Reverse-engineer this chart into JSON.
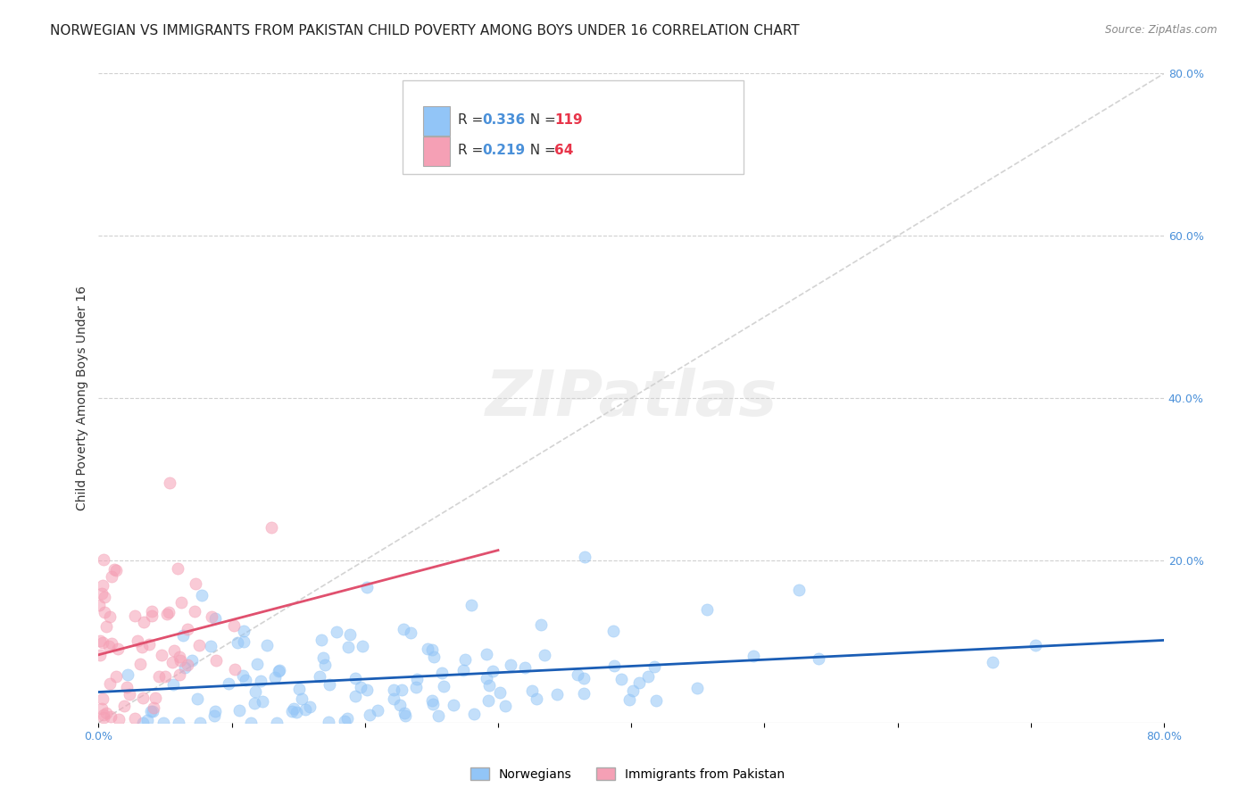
{
  "title": "NORWEGIAN VS IMMIGRANTS FROM PAKISTAN CHILD POVERTY AMONG BOYS UNDER 16 CORRELATION CHART",
  "source": "Source: ZipAtlas.com",
  "ylabel": "Child Poverty Among Boys Under 16",
  "xlim": [
    0.0,
    0.8
  ],
  "ylim": [
    0.0,
    0.8
  ],
  "color_norwegian": "#92c5f7",
  "color_pakistan": "#f5a0b5",
  "trendline_color_norwegian": "#1a5db5",
  "trendline_color_pakistan": "#e0506e",
  "watermark": "ZIPatlas",
  "R_norwegian": 0.336,
  "N_norwegian": 119,
  "R_pakistan": 0.219,
  "N_pakistan": 64,
  "background_color": "#ffffff",
  "grid_color": "#d0d0d0",
  "title_fontsize": 11,
  "axis_label_fontsize": 10,
  "tick_fontsize": 9,
  "legend_R_color": "#4a90d9",
  "legend_N_color": "#e8354a"
}
